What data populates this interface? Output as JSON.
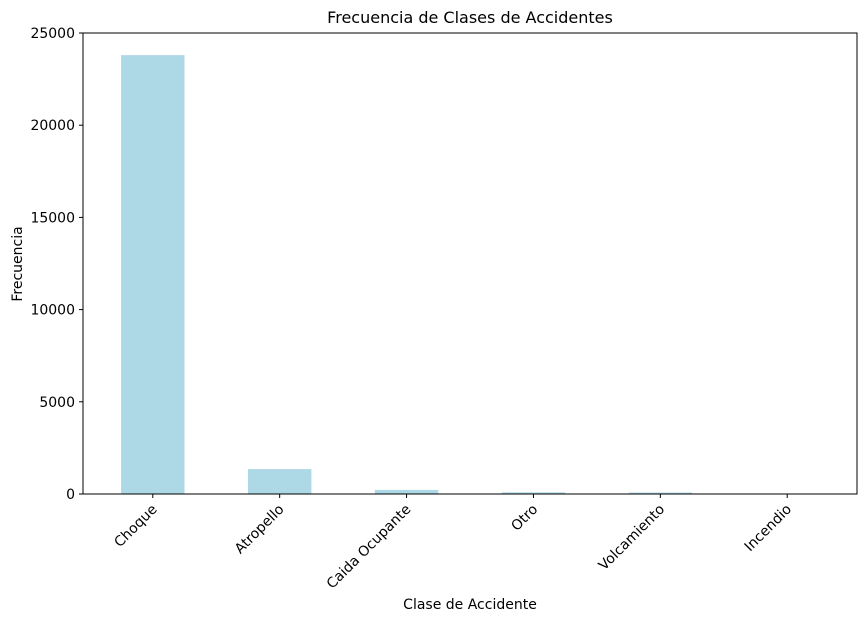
{
  "chart_data": {
    "type": "bar",
    "title": "Frecuencia de Clases de Accidentes",
    "xlabel": "Clase de Accidente",
    "ylabel": "Frecuencia",
    "categories": [
      "Choque",
      "Atropello",
      "Caida Ocupante",
      "Otro",
      "Volcamiento",
      "Incendio"
    ],
    "values": [
      23800,
      1350,
      220,
      90,
      80,
      5
    ],
    "ylim": [
      0,
      25000
    ],
    "yticks": [
      0,
      5000,
      10000,
      15000,
      20000,
      25000
    ],
    "bar_color": "#add8e6",
    "grid": false,
    "legend": "none"
  }
}
